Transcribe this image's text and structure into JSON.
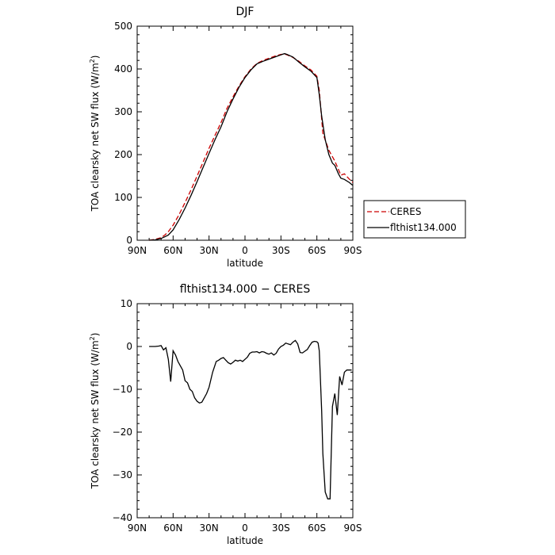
{
  "chart_data": [
    {
      "type": "line",
      "title": "DJF",
      "xlabel": "latitude",
      "ylabel_main": "TOA clearsky net SW flux (W/m",
      "ylabel_sup": "2",
      "ylabel_end": ")",
      "xlim": [
        90,
        -90
      ],
      "ylim": [
        0,
        500
      ],
      "xticks": [
        90,
        60,
        30,
        0,
        -30,
        -60,
        -90
      ],
      "xtick_labels": [
        "90N",
        "60N",
        "30N",
        "0",
        "30S",
        "60S",
        "90S"
      ],
      "yticks": [
        0,
        100,
        200,
        300,
        400,
        500
      ],
      "ytick_labels": [
        "0",
        "100",
        "200",
        "300",
        "400",
        "500"
      ],
      "grid": false,
      "legend": "outside-right",
      "series": [
        {
          "name": "CERES",
          "color": "#cc0000",
          "dash": true,
          "x": [
            80,
            75,
            70,
            67,
            64,
            60,
            55,
            50,
            45,
            40,
            35,
            30,
            25,
            20,
            15,
            10,
            5,
            0,
            -5,
            -10,
            -15,
            -20,
            -25,
            -30,
            -33,
            -35,
            -40,
            -45,
            -50,
            -55,
            -60,
            -62,
            -65,
            -70,
            -75,
            -78,
            -80,
            -83,
            -87,
            -90
          ],
          "y": [
            0,
            2,
            6,
            12,
            20,
            35,
            60,
            88,
            118,
            150,
            182,
            215,
            245,
            275,
            308,
            335,
            360,
            382,
            400,
            413,
            420,
            425,
            430,
            434,
            435,
            433,
            427,
            418,
            407,
            398,
            383,
            350,
            250,
            210,
            185,
            165,
            152,
            155,
            143,
            135
          ]
        },
        {
          "name": "flthist134.000",
          "color": "#000000",
          "dash": false,
          "x": [
            80,
            75,
            70,
            67,
            64,
            60,
            55,
            50,
            45,
            40,
            35,
            30,
            25,
            20,
            15,
            10,
            5,
            0,
            -5,
            -10,
            -15,
            -20,
            -25,
            -30,
            -33,
            -35,
            -40,
            -45,
            -50,
            -55,
            -60,
            -62,
            -64,
            -67,
            -70,
            -73,
            -75,
            -78,
            -80,
            -83,
            -87,
            -90
          ],
          "y": [
            0,
            1,
            4,
            8,
            12,
            24,
            48,
            75,
            105,
            137,
            170,
            203,
            235,
            265,
            300,
            330,
            357,
            380,
            398,
            412,
            418,
            423,
            428,
            433,
            436,
            434,
            428,
            416,
            405,
            395,
            380,
            340,
            290,
            235,
            200,
            180,
            175,
            155,
            145,
            142,
            135,
            128
          ]
        }
      ]
    },
    {
      "type": "line",
      "title": "flthist134.000 − CERES",
      "xlabel": "latitude",
      "ylabel_main": "TOA clearsky net SW flux (W/m",
      "ylabel_sup": "2",
      "ylabel_end": ")",
      "xlim": [
        90,
        -90
      ],
      "ylim": [
        -40,
        10
      ],
      "xticks": [
        90,
        60,
        30,
        0,
        -30,
        -60,
        -90
      ],
      "xtick_labels": [
        "90N",
        "60N",
        "30N",
        "0",
        "30S",
        "60S",
        "90S"
      ],
      "yticks": [
        -40,
        -30,
        -20,
        -10,
        0,
        10
      ],
      "ytick_labels": [
        "−40",
        "−30",
        "−20",
        "−10",
        "0",
        "10"
      ],
      "grid": false,
      "series": [
        {
          "color": "#000000",
          "dash": false,
          "x": [
            80,
            75,
            72,
            70,
            68,
            66,
            64,
            62,
            60,
            58,
            56,
            54,
            52,
            50,
            48,
            46,
            44,
            42,
            40,
            38,
            36,
            34,
            32,
            30,
            27,
            24,
            22,
            20,
            18,
            16,
            14,
            12,
            10,
            8,
            6,
            4,
            2,
            0,
            -2,
            -4,
            -6,
            -8,
            -10,
            -12,
            -14,
            -16,
            -18,
            -20,
            -22,
            -24,
            -26,
            -28,
            -30,
            -32,
            -34,
            -36,
            -38,
            -40,
            -42,
            -44,
            -46,
            -48,
            -50,
            -52,
            -54,
            -56,
            -58,
            -60,
            -61,
            -62,
            -63,
            -64,
            -65,
            -67,
            -69,
            -71,
            -73,
            -75,
            -77,
            -79,
            -81,
            -83,
            -85,
            -87,
            -89
          ],
          "y": [
            0,
            0,
            0.1,
            0.2,
            -0.8,
            -0.3,
            -3,
            -8.2,
            -1,
            -2,
            -3.5,
            -4.5,
            -5.5,
            -8,
            -8.5,
            -10,
            -10.5,
            -12,
            -12.8,
            -13.2,
            -13,
            -12,
            -11,
            -9.5,
            -6,
            -3.5,
            -3.2,
            -2.8,
            -2.6,
            -3.2,
            -3.8,
            -4.1,
            -3.7,
            -3.2,
            -3.4,
            -3.2,
            -3.5,
            -3,
            -2.5,
            -1.6,
            -1.3,
            -1.3,
            -1.2,
            -1.5,
            -1.2,
            -1.3,
            -1.6,
            -1.8,
            -1.5,
            -2,
            -1.6,
            -0.6,
            0,
            0.3,
            0.8,
            0.6,
            0.4,
            1,
            1.4,
            0.6,
            -1.4,
            -1.5,
            -1.1,
            -0.7,
            0.2,
            1,
            1.2,
            1.1,
            0.8,
            -1,
            -8,
            -15,
            -25,
            -34,
            -35.6,
            -35.6,
            -14,
            -11,
            -16,
            -7,
            -9,
            -6,
            -5.5,
            -5.5,
            -5.5
          ]
        }
      ]
    }
  ]
}
